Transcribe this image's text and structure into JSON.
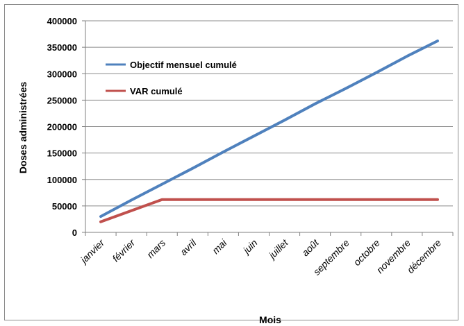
{
  "chart_data": {
    "type": "line",
    "xlabel": "Mois",
    "ylabel": "Doses administrées",
    "ylim": [
      0,
      400000
    ],
    "yticks": [
      0,
      50000,
      100000,
      150000,
      200000,
      250000,
      300000,
      350000,
      400000
    ],
    "ytick_labels": [
      "0",
      "50000",
      "100000",
      "150000",
      "200000",
      "250000",
      "300000",
      "350000",
      "400000"
    ],
    "categories": [
      "janvier",
      "février",
      "mars",
      "avril",
      "mai",
      "juin",
      "juillet",
      "août",
      "septembre",
      "octobre",
      "novembre",
      "décembre"
    ],
    "grid": "horizontal",
    "legend_position": "top-left",
    "series": [
      {
        "name": "Objectif mensuel cumulé",
        "color": "#4f81bd",
        "values": [
          30000,
          61000,
          91000,
          121000,
          152000,
          182000,
          212000,
          243000,
          272000,
          302000,
          333000,
          362000
        ]
      },
      {
        "name": "VAR cumulé",
        "color": "#c0504d",
        "values": [
          20000,
          41000,
          62000,
          62000,
          62000,
          62000,
          62000,
          62000,
          62000,
          62000,
          62000,
          62000
        ]
      }
    ]
  }
}
